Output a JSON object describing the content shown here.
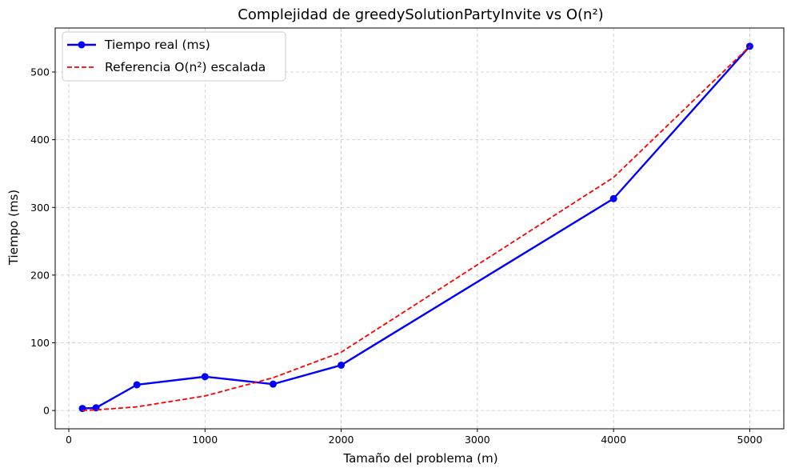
{
  "chart_data": {
    "type": "line",
    "title": "Complejidad de greedySolutionPartyInvite vs O(n²)",
    "xlabel": "Tamaño del problema (m)",
    "ylabel": "Tiempo (ms)",
    "xlim": [
      -100,
      5250
    ],
    "ylim": [
      -27,
      565
    ],
    "xticks": [
      0,
      1000,
      2000,
      3000,
      4000,
      5000
    ],
    "yticks": [
      0,
      100,
      200,
      300,
      400,
      500
    ],
    "grid": true,
    "legend_position": "top-left",
    "series": [
      {
        "name": "Tiempo real (ms)",
        "color": "#0000ff",
        "style": "solid",
        "marker": "circle",
        "x": [
          100,
          200,
          500,
          1000,
          1500,
          2000,
          4000,
          5000
        ],
        "y": [
          3,
          4,
          38,
          50,
          39,
          67,
          313,
          538
        ]
      },
      {
        "name": "Referencia O(n²) escalada",
        "color": "#ff0000",
        "style": "dashed",
        "marker": "none",
        "x": [
          100,
          200,
          500,
          1000,
          1500,
          2000,
          4000,
          5000
        ],
        "y": [
          0.2,
          0.9,
          5.4,
          21.5,
          48.4,
          86.1,
          344.3,
          538
        ]
      }
    ]
  }
}
